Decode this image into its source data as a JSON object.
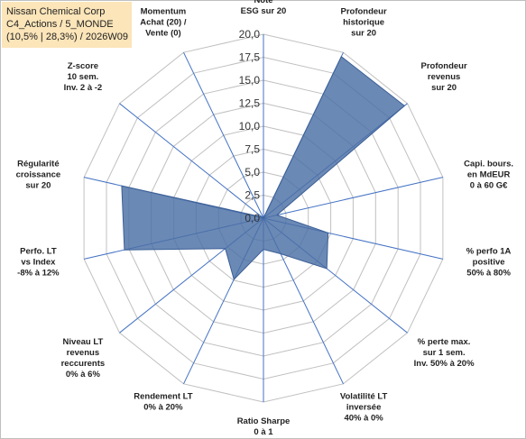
{
  "header": {
    "lines": [
      "Nissan Chemical Corp",
      "C4_Actions / 5_MONDE",
      "(10,5% | 28,3%) / 2026W09"
    ]
  },
  "chart_data": {
    "type": "radar",
    "title": "Nissan Chemical Corp",
    "rmin": 0,
    "rmax": 20,
    "ticks": [
      "0,0",
      "2,5",
      "5,0",
      "7,5",
      "10,0",
      "12,5",
      "15,0",
      "17,5",
      "20,0"
    ],
    "tick_values": [
      0,
      2.5,
      5,
      7.5,
      10,
      12.5,
      15,
      17.5,
      20
    ],
    "grid": true,
    "series_color": "#4a6fa5",
    "grid_color": "#c0c0c0",
    "axis_color": "#4472c4",
    "categories": [
      [
        "Note",
        "ESG sur 20"
      ],
      [
        "Profondeur",
        "historique",
        "sur 20"
      ],
      [
        "Profondeur",
        "revenus",
        "sur 20"
      ],
      [
        "Capi. bours.",
        "en MdEUR",
        "0 à 60 G€"
      ],
      [
        "% perfo 1A",
        "positive",
        "50% à 80%"
      ],
      [
        "% perte max.",
        "sur 1 sem.",
        "Inv. 50% à 20%"
      ],
      [
        "Volatilité LT",
        "inversée",
        "40% à 0%"
      ],
      [
        "Ratio Sharpe",
        "0 à 1"
      ],
      [
        "Rendement LT",
        "0% à 20%"
      ],
      [
        "Niveau LT",
        "revenus",
        "reccurents",
        "0% à 6%"
      ],
      [
        "Perfo. LT",
        "vs Index",
        "-8% à 12%"
      ],
      [
        "Régularité",
        "croissance",
        "sur 20"
      ],
      [
        "Z-score",
        "10 sem.",
        "Inv. 2 à -2"
      ],
      [
        "Momentum",
        "Achat (20) /",
        "Vente (0)"
      ]
    ],
    "series": [
      {
        "values": [
          0,
          19.5,
          19.6,
          1.5,
          7.2,
          8.8,
          4.3,
          3.4,
          7.4,
          5.3,
          15.5,
          15.8,
          0.2,
          0
        ]
      }
    ]
  }
}
